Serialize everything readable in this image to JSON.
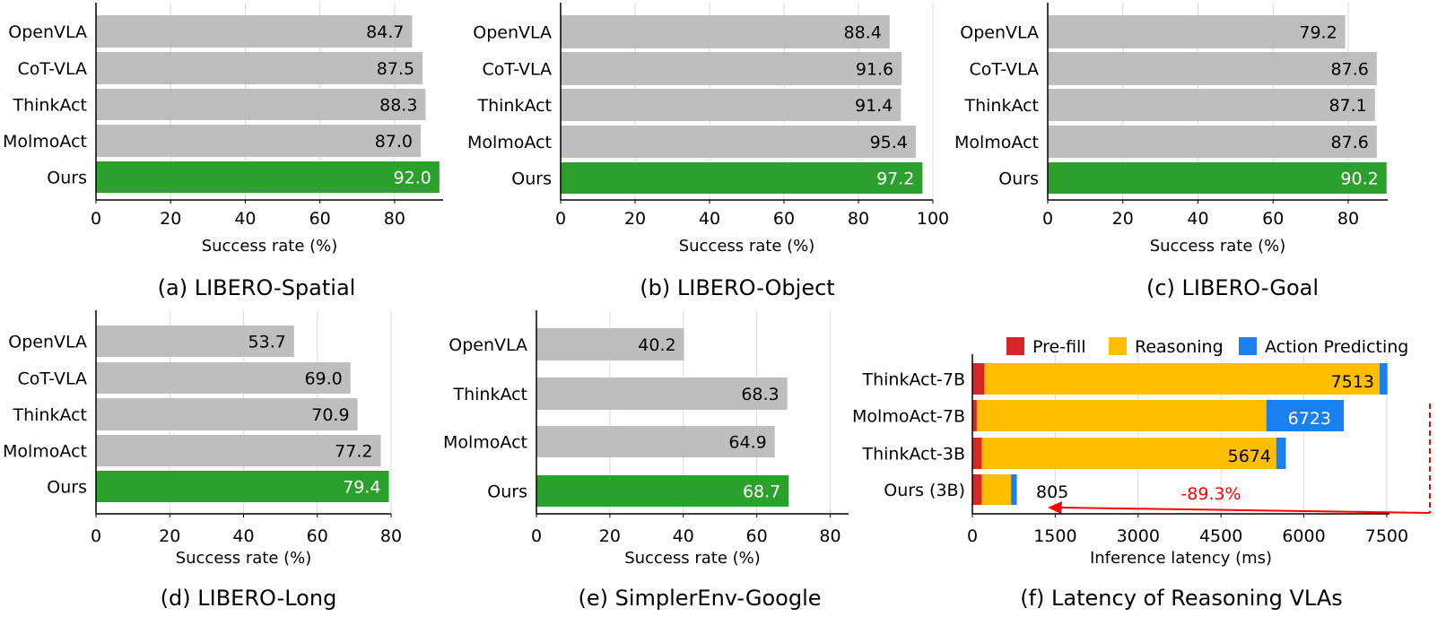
{
  "chart_data": [
    {
      "id": "a",
      "type": "bar",
      "orientation": "horizontal",
      "title": "(a) LIBERO-Spatial",
      "xlabel": "Success rate (%)",
      "ylabel": "",
      "categories": [
        "OpenVLA",
        "CoT-VLA",
        "ThinkAct",
        "MolmoAct",
        "Ours"
      ],
      "values": [
        84.7,
        87.5,
        88.3,
        87.0,
        92.0
      ],
      "value_labels": [
        "84.7",
        "87.5",
        "88.3",
        "87.0",
        "92.0"
      ],
      "highlight": "Ours",
      "xlim": [
        0,
        93
      ],
      "xticks": [
        0,
        20,
        40,
        60,
        80
      ],
      "grid": true
    },
    {
      "id": "b",
      "type": "bar",
      "orientation": "horizontal",
      "title": "(b) LIBERO-Object",
      "xlabel": "Success rate (%)",
      "ylabel": "",
      "categories": [
        "OpenVLA",
        "CoT-VLA",
        "ThinkAct",
        "MolmoAct",
        "Ours"
      ],
      "values": [
        88.4,
        91.6,
        91.4,
        95.4,
        97.2
      ],
      "value_labels": [
        "88.4",
        "91.6",
        "91.4",
        "95.4",
        "97.2"
      ],
      "highlight": "Ours",
      "xlim": [
        0,
        100
      ],
      "xticks": [
        0,
        20,
        40,
        60,
        80,
        100
      ],
      "grid": true
    },
    {
      "id": "c",
      "type": "bar",
      "orientation": "horizontal",
      "title": "(c) LIBERO-Goal",
      "xlabel": "Success rate (%)",
      "ylabel": "",
      "categories": [
        "OpenVLA",
        "CoT-VLA",
        "ThinkAct",
        "MolmoAct",
        "Ours"
      ],
      "values": [
        79.2,
        87.6,
        87.1,
        87.6,
        90.2
      ],
      "value_labels": [
        "79.2",
        "87.6",
        "87.1",
        "87.6",
        "90.2"
      ],
      "highlight": "Ours",
      "xlim": [
        0,
        90.5
      ],
      "xticks": [
        0,
        20,
        40,
        60,
        80
      ],
      "grid": true
    },
    {
      "id": "d",
      "type": "bar",
      "orientation": "horizontal",
      "title": "(d) LIBERO-Long",
      "xlabel": "Success rate (%)",
      "ylabel": "",
      "categories": [
        "OpenVLA",
        "CoT-VLA",
        "ThinkAct",
        "MolmoAct",
        "Ours"
      ],
      "values": [
        53.7,
        69.0,
        70.9,
        77.2,
        79.4
      ],
      "value_labels": [
        "53.7",
        "69.0",
        "70.9",
        "77.2",
        "79.4"
      ],
      "highlight": "Ours",
      "xlim": [
        0,
        80
      ],
      "xticks": [
        0,
        20,
        40,
        60,
        80
      ],
      "grid": true
    },
    {
      "id": "e",
      "type": "bar",
      "orientation": "horizontal",
      "title": "(e) SimplerEnv-Google",
      "xlabel": "Success rate (%)",
      "ylabel": "",
      "categories": [
        "OpenVLA",
        "ThinkAct",
        "MolmoAct",
        "Ours"
      ],
      "values": [
        40.2,
        68.3,
        64.9,
        68.7
      ],
      "value_labels": [
        "40.2",
        "68.3",
        "64.9",
        "68.7"
      ],
      "highlight": "Ours",
      "xlim": [
        0,
        85
      ],
      "xticks": [
        0,
        20,
        40,
        60,
        80
      ],
      "grid": true
    },
    {
      "id": "f",
      "type": "bar",
      "orientation": "horizontal",
      "stacked": true,
      "title": "(f) Latency of Reasoning VLAs",
      "xlabel": "Inference latency (ms)",
      "ylabel": "",
      "categories": [
        "ThinkAct-7B",
        "MolmoAct-7B",
        "ThinkAct-3B",
        "Ours (3B)"
      ],
      "series": [
        {
          "name": "Pre-fill",
          "color": "#d62728",
          "values": [
            220,
            80,
            170,
            170
          ]
        },
        {
          "name": "Reasoning",
          "color": "#ffbe00",
          "values": [
            7150,
            5240,
            5330,
            530
          ]
        },
        {
          "name": "Action Predicting",
          "color": "#1a80f0",
          "values": [
            143,
            1403,
            174,
            105
          ]
        }
      ],
      "totals": [
        7513,
        6723,
        5674,
        805
      ],
      "total_labels": [
        "7513",
        "6723",
        "5674",
        "805"
      ],
      "annotation": {
        "text": "-89.3%",
        "color": "#ff0000",
        "from": "ThinkAct-7B",
        "to": "Ours (3B)"
      },
      "legend_position": "top",
      "xlim": [
        0,
        7550
      ],
      "xticks": [
        0,
        1500,
        3000,
        4500,
        6000,
        7500
      ],
      "grid": true
    }
  ],
  "colors": {
    "bar": "#bebebe",
    "highlight": "#2ca02c",
    "grid": "#d9d9d9",
    "axis": "#000000"
  }
}
